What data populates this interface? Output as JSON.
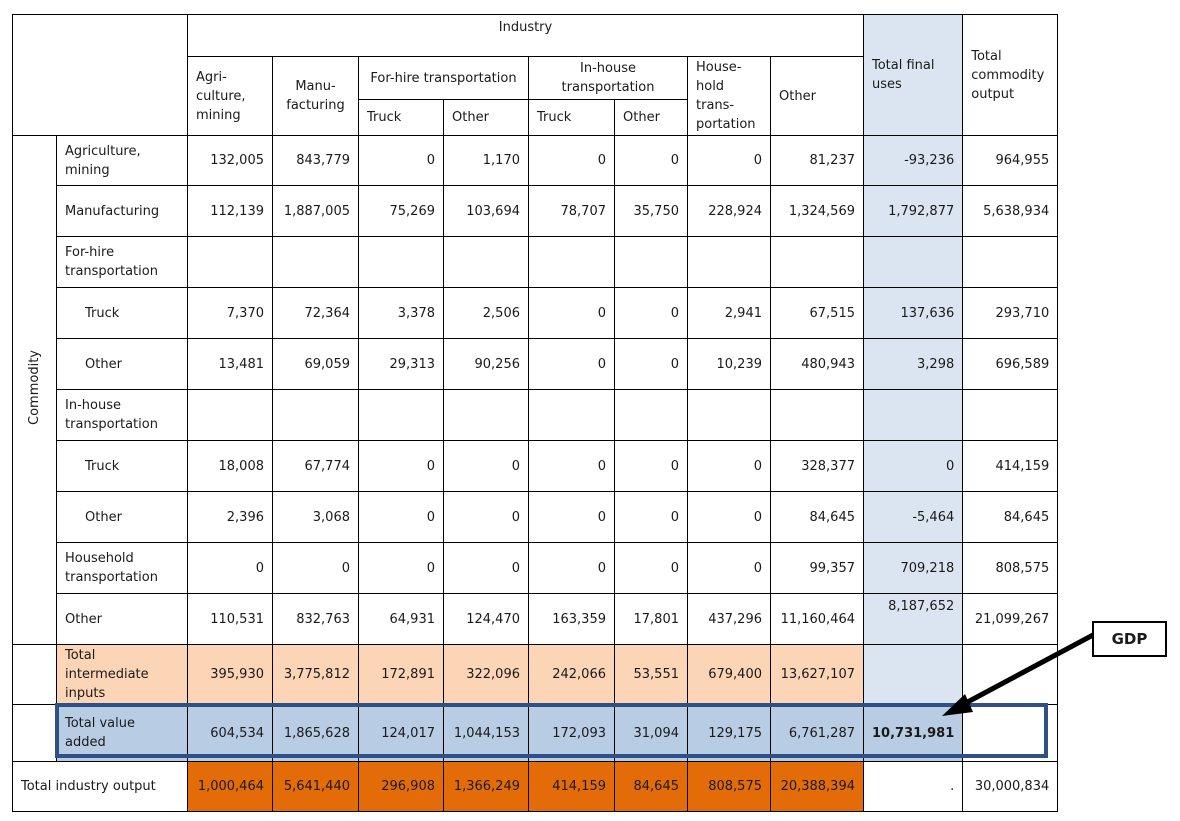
{
  "header": {
    "industry": "Industry",
    "columns": [
      "Agri-\nculture,\nmining",
      "Manu-\nfacturing",
      "For-hire transportation",
      "In-house\ntransportation",
      "House-\nhold\ntrans-\nportation",
      "Other"
    ],
    "subcolumns": [
      "Truck",
      "Other",
      "Truck",
      "Other"
    ],
    "total_final_uses": "Total final\nuses",
    "total_commodity_output": "Total\ncommodity\noutput"
  },
  "commodity_label": "Commodity",
  "rows": [
    {
      "label": "Agriculture,\nmining",
      "values": [
        "132,005",
        "843,779",
        "0",
        "1,170",
        "0",
        "0",
        "0",
        "81,237"
      ],
      "final": "-93,236",
      "output": "964,955"
    },
    {
      "label": "Manufacturing",
      "values": [
        "112,139",
        "1,887,005",
        "75,269",
        "103,694",
        "78,707",
        "35,750",
        "228,924",
        "1,324,569"
      ],
      "final": "1,792,877",
      "output": "5,638,934"
    },
    {
      "label": "For-hire\ntransportation",
      "values": [
        "",
        "",
        "",
        "",
        "",
        "",
        "",
        ""
      ],
      "final": "",
      "output": ""
    },
    {
      "label": "Truck",
      "values": [
        "7,370",
        "72,364",
        "3,378",
        "2,506",
        "0",
        "0",
        "2,941",
        "67,515"
      ],
      "final": "137,636",
      "output": "293,710"
    },
    {
      "label": "Other",
      "values": [
        "13,481",
        "69,059",
        "29,313",
        "90,256",
        "0",
        "0",
        "10,239",
        "480,943"
      ],
      "final": "3,298",
      "output": "696,589"
    },
    {
      "label": "In-house\ntransportation",
      "values": [
        "",
        "",
        "",
        "",
        "",
        "",
        "",
        ""
      ],
      "final": "",
      "output": ""
    },
    {
      "label": "Truck",
      "values": [
        "18,008",
        "67,774",
        "0",
        "0",
        "0",
        "0",
        "0",
        "328,377"
      ],
      "final": "0",
      "output": "414,159"
    },
    {
      "label": "Other",
      "values": [
        "2,396",
        "3,068",
        "0",
        "0",
        "0",
        "0",
        "0",
        "84,645"
      ],
      "final": "-5,464",
      "output": "84,645"
    },
    {
      "label": "Household\ntransportation",
      "values": [
        "0",
        "0",
        "0",
        "0",
        "0",
        "0",
        "0",
        "99,357"
      ],
      "final": "709,218",
      "output": "808,575"
    },
    {
      "label": "Other",
      "values": [
        "110,531",
        "832,763",
        "64,931",
        "124,470",
        "163,359",
        "17,801",
        "437,296",
        "11,160,464"
      ],
      "final": "8,187,652",
      "output": "21,099,267"
    }
  ],
  "intermediate": {
    "label": "Total\nintermediate\ninputs",
    "values": [
      "395,930",
      "3,775,812",
      "172,891",
      "322,096",
      "242,066",
      "53,551",
      "679,400",
      "13,627,107"
    ]
  },
  "value_added": {
    "label": "Total value\nadded",
    "values": [
      "604,534",
      "1,865,628",
      "124,017",
      "1,044,153",
      "172,093",
      "31,094",
      "129,175",
      "6,761,287"
    ],
    "final": "10,731,981"
  },
  "industry_output": {
    "label": "Total industry output",
    "values": [
      "1,000,464",
      "5,641,440",
      "296,908",
      "1,366,249",
      "414,159",
      "84,645",
      "808,575",
      "20,388,394"
    ],
    "final": ".",
    "output": "30,000,834"
  },
  "callout": {
    "label": "GDP"
  },
  "colors": {
    "final_uses": "#dbe5f1",
    "value_added": "#b8cce4",
    "intermediate": "#fbd5b5",
    "industry_output": "#e36c09",
    "outline": "#2e5087"
  }
}
